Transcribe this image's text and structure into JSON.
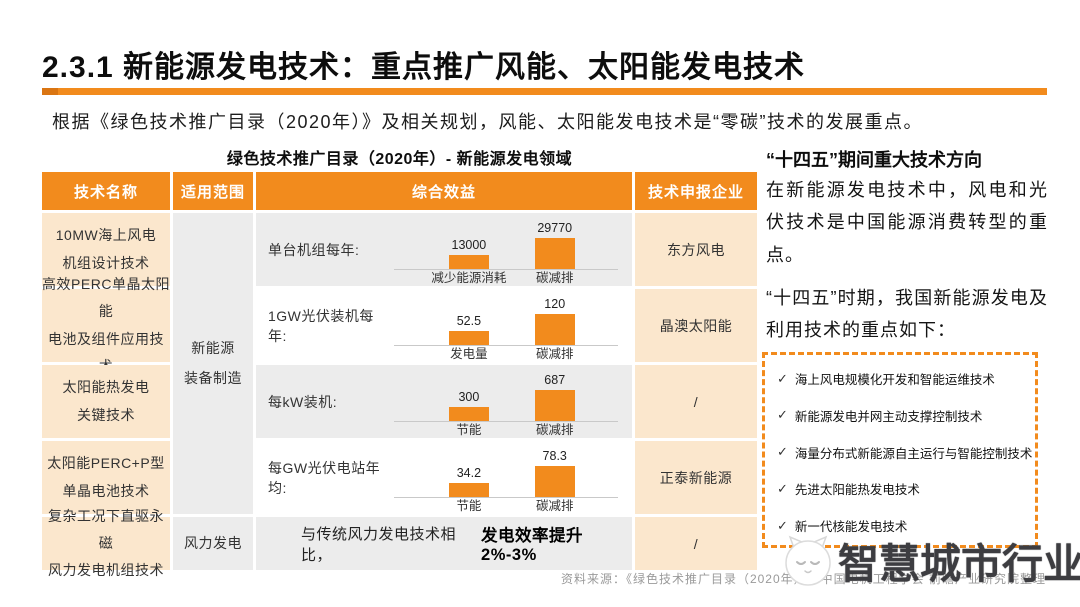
{
  "colors": {
    "accent": "#F28B1D",
    "peach": "#FBE7CD",
    "gray_cell": "#ECECEC",
    "bar": "#F28B1D",
    "header_text": "#FFFFFF"
  },
  "page": {
    "title": "2.3.1 新能源发电技术：重点推广风能、太阳能发电技术",
    "intro": "根据《绿色技术推广目录（2020年）》及相关规划，风能、太阳能发电技术是“零碳”技术的发展重点。",
    "source": "资料来源：《绿色技术推广目录（2020年）》，中国电机工程学会 前瞻产业研究院整理"
  },
  "table": {
    "title": "绿色技术推广目录（2020年）- 新能源发电领域",
    "headers": [
      "技术名称",
      "适用范围",
      "综合效益",
      "技术申报企业"
    ],
    "scope_merged": "新能源\n装备制造",
    "scope_row5": "风力发电",
    "rows": [
      {
        "name": "10MW海上风电\n机组设计技术",
        "company": "东方风电",
        "chart": {
          "type": "bars",
          "label": "单台机组每年:",
          "bars": [
            {
              "display": "13000",
              "value": 13000,
              "axis": "减少能源消耗"
            },
            {
              "display": "29770",
              "value": 29770,
              "axis": "碳减排"
            }
          ]
        }
      },
      {
        "name": "高效PERC单晶太阳能\n电池及组件应用技术",
        "company": "晶澳太阳能",
        "chart": {
          "type": "bars",
          "label": "1GW光伏装机每年:",
          "bars": [
            {
              "display": "52.5",
              "value": 52.5,
              "axis": "发电量"
            },
            {
              "display": "120",
              "value": 120,
              "axis": "碳减排"
            }
          ]
        }
      },
      {
        "name": "太阳能热发电\n关键技术",
        "company": "/",
        "chart": {
          "type": "bars",
          "label": "每kW装机:",
          "bars": [
            {
              "display": "300",
              "value": 300,
              "axis": "节能"
            },
            {
              "display": "687",
              "value": 687,
              "axis": "碳减排"
            }
          ]
        }
      },
      {
        "name": "太阳能PERC+P型\n单晶电池技术",
        "company": "正泰新能源",
        "chart": {
          "type": "bars",
          "label": "每GW光伏电站年均:",
          "bars": [
            {
              "display": "34.2",
              "value": 34.2,
              "axis": "节能"
            },
            {
              "display": "78.3",
              "value": 78.3,
              "axis": "碳减排"
            }
          ]
        }
      },
      {
        "name": "复杂工况下直驱永磁\n风力发电机组技术",
        "company": "/",
        "chart": {
          "type": "text",
          "prefix": "与传统风力发电技术相比，",
          "bold_text": "发电效率提升2%-3%"
        }
      }
    ]
  },
  "right_panel": {
    "title": "“十四五”期间重大技术方向",
    "para1": "在新能源发电技术中，风电和光伏技术是中国能源消费转型的重点。",
    "para2": "“十四五”时期，我国新能源发电及利用技术的重点如下：",
    "check_glyph": "✓",
    "check_items": [
      "海上风电规模化开发和智能运维技术",
      "新能源发电并网主动支撑控制技术",
      "海量分布式新能源自主运行与智能控制技术",
      "先进太阳能热发电技术",
      "新一代核能发电技术"
    ]
  },
  "watermark": {
    "text": "智慧城市行业动态",
    "logo": "cat-face-logo"
  }
}
